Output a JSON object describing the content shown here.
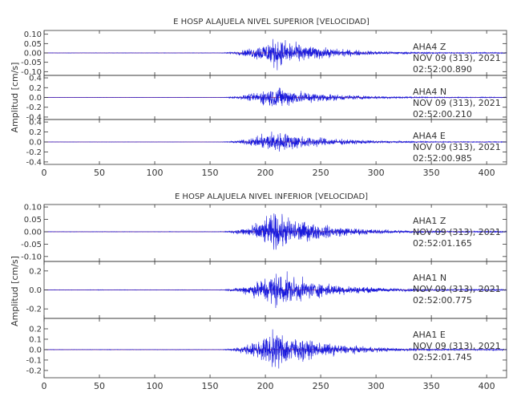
{
  "trace_color": "#1a1adc",
  "zero_line_color": "#d23c3c",
  "frame_color": "#333333",
  "chart_data": [
    {
      "type": "line",
      "title": "E HOSP ALAJUELA NIVEL SUPERIOR [VELOCIDAD]",
      "ylabel": "Amplitud [cm/s]",
      "xlabel": "",
      "xlim": [
        0,
        418
      ],
      "x_ticks": [
        0,
        50,
        100,
        150,
        200,
        250,
        300,
        350,
        400
      ],
      "grid": false,
      "envelope_params": {
        "onset_s": 155,
        "peak_s": 208,
        "tail_s": 420
      },
      "panels": [
        {
          "ylim": [
            -0.12,
            0.12
          ],
          "y_ticks": [
            -0.1,
            -0.05,
            0.0,
            0.05,
            0.1
          ],
          "y_tick_labels": [
            "-0.10",
            "-0.05",
            "0.00",
            "0.05",
            "0.10"
          ],
          "peak_amplitude": 0.105,
          "station": "AHA4",
          "component": "Z",
          "date": "NOV 09 (313), 2021",
          "time": "02:52:00.890",
          "series": [
            {
              "name": "AHA4 Z"
            }
          ]
        },
        {
          "ylim": [
            -0.45,
            0.45
          ],
          "y_ticks": [
            -0.4,
            -0.2,
            0.0,
            0.2,
            0.4
          ],
          "y_tick_labels": [
            "-0.4",
            "-0.2",
            "0.0",
            "0.2",
            "0.4"
          ],
          "peak_amplitude": 0.3,
          "station": "AHA4",
          "component": "N",
          "date": "NOV 09 (313), 2021",
          "time": "02:52:00.210",
          "series": [
            {
              "name": "AHA4 N"
            }
          ]
        },
        {
          "ylim": [
            -0.45,
            0.45
          ],
          "y_ticks": [
            -0.4,
            -0.2,
            0.0,
            0.2,
            0.4
          ],
          "y_tick_labels": [
            "-0.4",
            "-0.2",
            "0.0",
            "0.2",
            "0.4"
          ],
          "peak_amplitude": 0.3,
          "station": "AHA4",
          "component": "E",
          "date": "NOV 09 (313), 2021",
          "time": "02:52:00.985",
          "series": [
            {
              "name": "AHA4 E"
            }
          ]
        }
      ]
    },
    {
      "type": "line",
      "title": "E HOSP ALAJUELA NIVEL INFERIOR [VELOCIDAD]",
      "ylabel": "Amplitud [cm/s]",
      "xlabel": "",
      "xlim": [
        0,
        418
      ],
      "x_ticks": [
        0,
        50,
        100,
        150,
        200,
        250,
        300,
        350,
        400
      ],
      "grid": false,
      "envelope_params": {
        "onset_s": 155,
        "peak_s": 208,
        "tail_s": 420
      },
      "panels": [
        {
          "ylim": [
            -0.12,
            0.11
          ],
          "y_ticks": [
            -0.1,
            -0.05,
            0.0,
            0.05,
            0.1
          ],
          "y_tick_labels": [
            "-0.10",
            "-0.05",
            "0.00",
            "0.05",
            "0.10"
          ],
          "peak_amplitude": 0.1,
          "station": "AHA1",
          "component": "Z",
          "date": "NOV 09 (313), 2021",
          "time": "02:52:01.165",
          "series": [
            {
              "name": "AHA1 Z"
            }
          ]
        },
        {
          "ylim": [
            -0.3,
            0.3
          ],
          "y_ticks": [
            -0.2,
            0.0,
            0.2
          ],
          "y_tick_labels": [
            "-0.2",
            "0.0",
            "0.2"
          ],
          "peak_amplitude": 0.26,
          "station": "AHA1",
          "component": "N",
          "date": "NOV 09 (313), 2021",
          "time": "02:52:00.775",
          "series": [
            {
              "name": "AHA1 N"
            }
          ]
        },
        {
          "ylim": [
            -0.27,
            0.3
          ],
          "y_ticks": [
            -0.2,
            -0.1,
            0.0,
            0.1,
            0.2
          ],
          "y_tick_labels": [
            "-0.2",
            "-0.1",
            "0.0",
            "0.1",
            "0.2"
          ],
          "peak_amplitude": 0.24,
          "station": "AHA1",
          "component": "E",
          "date": "NOV 09 (313), 2021",
          "time": "02:52:01.745",
          "series": [
            {
              "name": "AHA1 E"
            }
          ]
        }
      ]
    }
  ]
}
